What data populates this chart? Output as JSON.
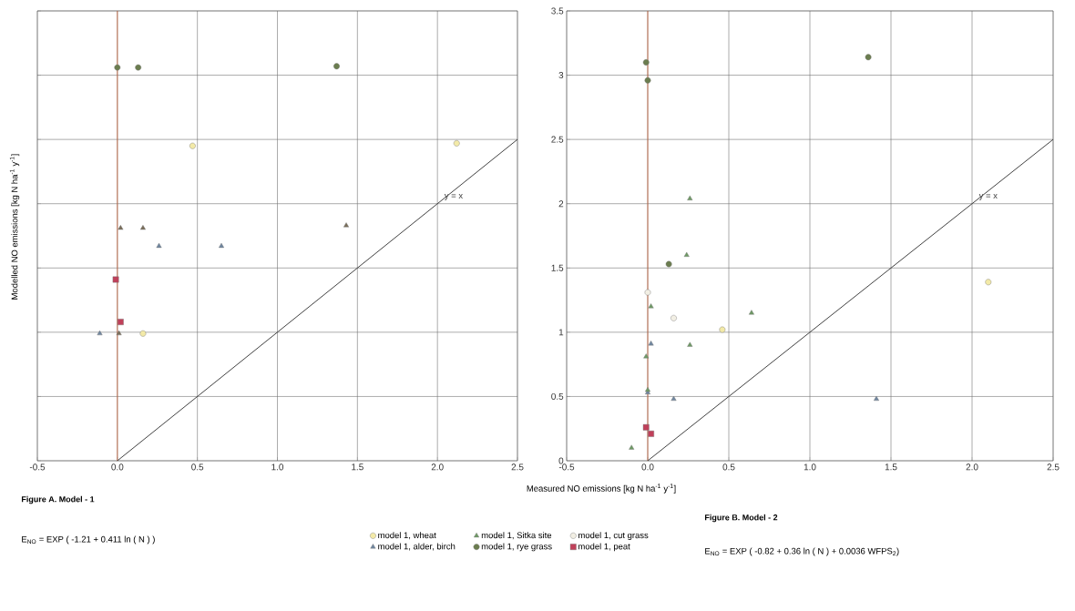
{
  "chart_data": [
    {
      "type": "scatter",
      "title": "Figure A. Model - 1",
      "ylabel": "Modelled NO emissions [kg N ha$^{-1}$ y$^{-1}$]",
      "annotations": [
        "E$_{NO}$ = EXP ( -1.21 + 0.411 ln ( N ) )"
      ],
      "xlim": [
        -0.5,
        2.5
      ],
      "ylim": [
        0,
        3.5
      ],
      "xticks": [
        -0.5,
        {
          "value": 0,
          "label": "0.0"
        },
        0.5,
        {
          "value": 1,
          "label": "1.0"
        },
        1.5,
        {
          "value": 2,
          "label": "2.0"
        },
        2.5
      ],
      "yticks": [
        0,
        0.5,
        1,
        1.5,
        2,
        2.5,
        3,
        3.5
      ],
      "tick_labels": "x",
      "grid": true,
      "legend": false,
      "ref_lines": [
        {
          "axis": "x",
          "value": 0,
          "color": "#c8643c"
        }
      ],
      "series": [
        {
          "color": "#f3eaa8",
          "marker": "circle",
          "x": [
            0.47,
            2.12,
            0.16
          ],
          "values": [
            2.45,
            2.47,
            0.99
          ]
        },
        {
          "color": "#6f86a0",
          "marker": "triangle",
          "x": [
            0.26,
            0.65,
            -0.11
          ],
          "values": [
            1.67,
            1.67,
            0.99
          ]
        },
        {
          "color": "#7a6e5a",
          "marker": "triangle",
          "x": [
            0.02,
            0.16,
            1.43,
            0.01
          ],
          "values": [
            1.81,
            1.81,
            1.83,
            0.99
          ]
        },
        {
          "color": "#6b7d4f",
          "marker": "circle",
          "x": [
            0.0,
            0.13,
            1.37
          ],
          "values": [
            3.06,
            3.06,
            3.07
          ]
        },
        {
          "color": "#c0405a",
          "marker": "square",
          "x": [
            -0.01,
            0.02
          ],
          "values": [
            1.41,
            1.08
          ]
        },
        {
          "type": "line",
          "name": "y = x",
          "color": "#404040",
          "marker": "none",
          "x": [
            0,
            2.5
          ],
          "values": [
            0,
            2.5
          ]
        }
      ]
    },
    {
      "type": "scatter",
      "title": "Figure B. Model - 2",
      "xlabel": "Measured NO emissions [kg N ha$^{-1}$ y$^{-1}$]",
      "annotations": [
        "E$_{NO}$ = EXP ( -0.82 + 0.36 ln ( N ) + 0.0036 WFPS$_{2}$)"
      ],
      "xlim": [
        -0.5,
        2.5
      ],
      "ylim": [
        0,
        3.5
      ],
      "xticks": [
        -0.5,
        {
          "value": 0,
          "label": "0.0"
        },
        0.5,
        {
          "value": 1,
          "label": "1.0"
        },
        1.5,
        {
          "value": 2,
          "label": "2.0"
        },
        2.5
      ],
      "yticks": [
        0,
        0.5,
        1,
        1.5,
        2,
        2.5,
        3,
        3.5
      ],
      "grid": true,
      "legend": "bottom",
      "ref_lines": [
        {
          "axis": "x",
          "value": 0,
          "color": "#c8643c"
        }
      ],
      "series": [
        {
          "name": "model 1, wheat",
          "color": "#f3eaa8",
          "marker": "circle",
          "x": [
            0.46,
            2.1
          ],
          "values": [
            1.02,
            1.39
          ]
        },
        {
          "name": "model 1, alder, birch",
          "color": "#6f86a0",
          "marker": "triangle",
          "x": [
            0.02,
            0.0,
            0.16,
            1.41
          ],
          "values": [
            0.91,
            0.53,
            0.48,
            0.48
          ]
        },
        {
          "name": "model 1, Sitka site",
          "color": "#6e9a64",
          "marker": "triangle",
          "x": [
            0.26,
            0.24,
            0.02,
            0.64,
            0.26,
            -0.01,
            0.0,
            -0.1
          ],
          "values": [
            2.04,
            1.6,
            1.2,
            1.15,
            0.9,
            0.81,
            0.55,
            0.1
          ]
        },
        {
          "name": "model 1, rye grass",
          "color": "#6b7d4f",
          "marker": "circle",
          "x": [
            -0.01,
            0.0,
            1.36,
            0.13
          ],
          "values": [
            3.1,
            2.96,
            3.14,
            1.53
          ]
        },
        {
          "name": "model 1, cut grass",
          "color": "#f2efe4",
          "marker": "circle",
          "x": [
            0.0,
            0.16
          ],
          "values": [
            1.31,
            1.11
          ]
        },
        {
          "name": "model 1, peat",
          "color": "#c0405a",
          "marker": "square",
          "x": [
            -0.01,
            0.02
          ],
          "values": [
            0.26,
            0.21
          ]
        },
        {
          "type": "line",
          "name": "y = x",
          "color": "#404040",
          "marker": "none",
          "x": [
            0,
            2.5
          ],
          "values": [
            0,
            2.5
          ]
        }
      ]
    }
  ]
}
